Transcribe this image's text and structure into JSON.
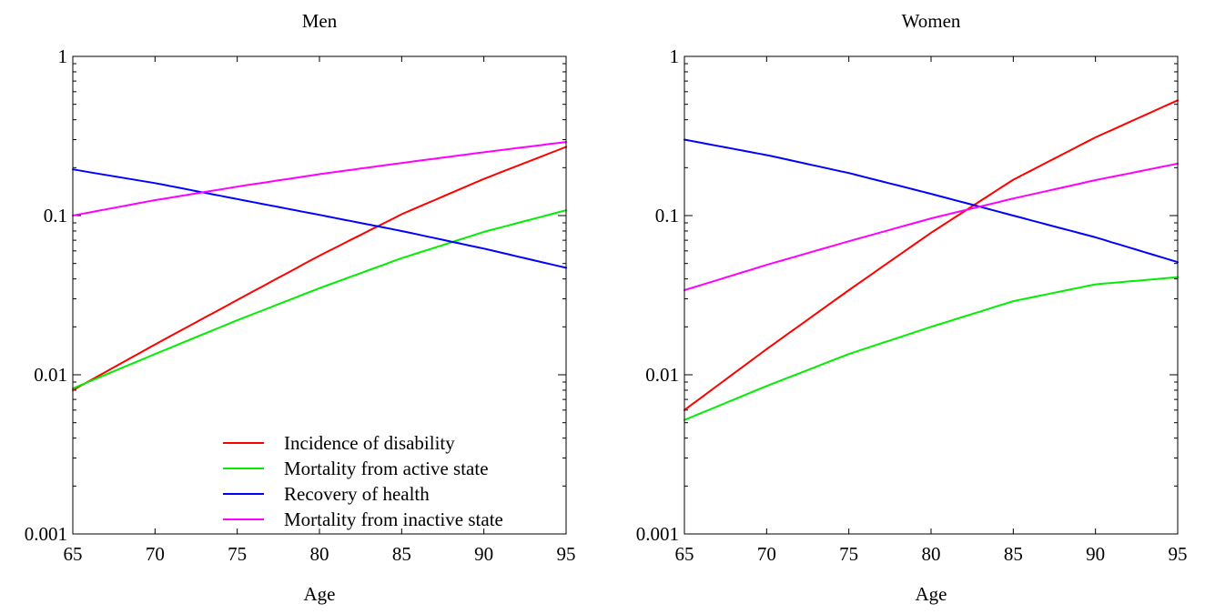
{
  "chart_data": [
    {
      "type": "line",
      "title": "Men",
      "xlabel": "Age",
      "ylabel": "",
      "xlim": [
        65,
        95
      ],
      "ylim": [
        0.001,
        1
      ],
      "yscale": "log",
      "xticks": [
        "65",
        "70",
        "75",
        "80",
        "85",
        "90",
        "95"
      ],
      "yticks": [
        "0.001",
        "0.01",
        "0.1",
        "1"
      ],
      "grid": false,
      "legend": "bottom-right",
      "x": [
        65,
        70,
        75,
        80,
        85,
        90,
        95
      ],
      "series": [
        {
          "name": "Incidence of disability",
          "color": "#ff0000",
          "values": [
            0.008,
            0.0155,
            0.0295,
            0.056,
            0.102,
            0.17,
            0.27
          ]
        },
        {
          "name": "Mortality from active state",
          "color": "#00ee00",
          "values": [
            0.0082,
            0.0135,
            0.022,
            0.035,
            0.054,
            0.079,
            0.108
          ]
        },
        {
          "name": "Recovery of health",
          "color": "#0000ff",
          "values": [
            0.195,
            0.16,
            0.127,
            0.101,
            0.08,
            0.062,
            0.047
          ]
        },
        {
          "name": "Mortality from inactive state",
          "color": "#ff00ff",
          "values": [
            0.1,
            0.125,
            0.152,
            0.182,
            0.214,
            0.25,
            0.29
          ]
        }
      ]
    },
    {
      "type": "line",
      "title": "Women",
      "xlabel": "Age",
      "ylabel": "",
      "xlim": [
        65,
        95
      ],
      "ylim": [
        0.001,
        1
      ],
      "yscale": "log",
      "xticks": [
        "65",
        "70",
        "75",
        "80",
        "85",
        "90",
        "95"
      ],
      "yticks": [
        "0.001",
        "0.01",
        "0.1",
        "1"
      ],
      "grid": false,
      "legend": "none",
      "x": [
        65,
        70,
        75,
        80,
        85,
        90,
        95
      ],
      "series": [
        {
          "name": "Incidence of disability",
          "color": "#ff0000",
          "values": [
            0.006,
            0.0145,
            0.034,
            0.078,
            0.168,
            0.31,
            0.53
          ]
        },
        {
          "name": "Mortality from active state",
          "color": "#00ee00",
          "values": [
            0.0052,
            0.0085,
            0.0135,
            0.02,
            0.029,
            0.037,
            0.041
          ]
        },
        {
          "name": "Recovery of health",
          "color": "#0000ff",
          "values": [
            0.3,
            0.24,
            0.185,
            0.137,
            0.1,
            0.073,
            0.051
          ]
        },
        {
          "name": "Mortality from inactive state",
          "color": "#ff00ff",
          "values": [
            0.034,
            0.049,
            0.069,
            0.096,
            0.128,
            0.167,
            0.212
          ]
        }
      ]
    }
  ]
}
